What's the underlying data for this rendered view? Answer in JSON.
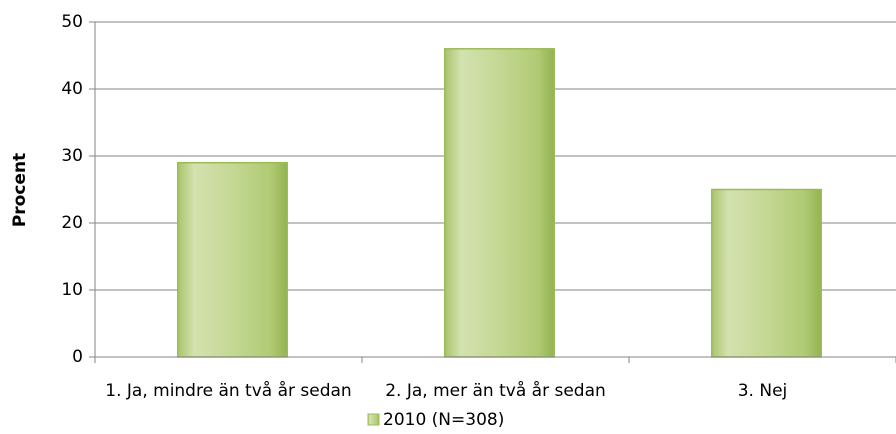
{
  "chart_data": {
    "type": "bar",
    "y_label": "Procent",
    "categories": [
      "1. Ja, mindre än två år sedan",
      "2. Ja, mer än två år sedan",
      "3. Nej"
    ],
    "series": [
      {
        "name": "2010 (N=308)",
        "color": "#9bbb59",
        "values": [
          29,
          46,
          25
        ]
      }
    ],
    "ylim": [
      0,
      50
    ],
    "yticks": [
      0,
      10,
      20,
      30,
      40,
      50
    ],
    "grid": true,
    "legend": "bottom"
  }
}
